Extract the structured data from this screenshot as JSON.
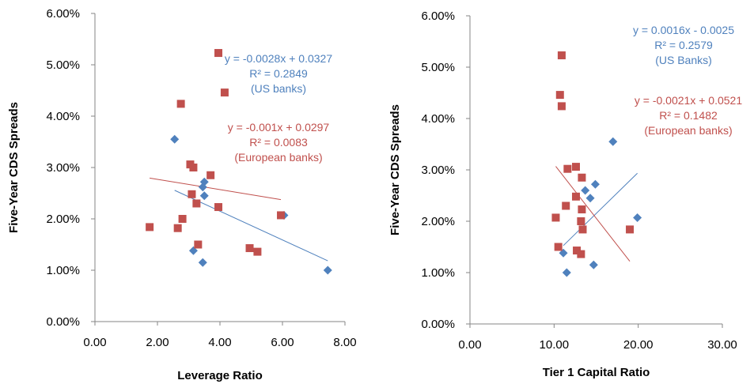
{
  "colors": {
    "us": "#4f81bd",
    "eu": "#c0504d",
    "axis": "#868686"
  },
  "chart_data": [
    {
      "type": "scatter",
      "xlabel": "Leverage Ratio",
      "ylabel": "Five-Year CDS Spreads",
      "xlim": [
        0,
        8
      ],
      "ylim": [
        0,
        0.06
      ],
      "x_ticks": [
        "0.00",
        "2.00",
        "4.00",
        "6.00",
        "8.00"
      ],
      "y_ticks": [
        "0.00%",
        "1.00%",
        "2.00%",
        "3.00%",
        "4.00%",
        "5.00%",
        "6.00%"
      ],
      "series": [
        {
          "key": "us",
          "marker": "diamond",
          "points": [
            [
              2.55,
              0.0355
            ],
            [
              3.5,
              0.0272
            ],
            [
              3.45,
              0.0262
            ],
            [
              3.5,
              0.0245
            ],
            [
              3.15,
              0.0138
            ],
            [
              3.45,
              0.0115
            ],
            [
              6.05,
              0.0207
            ],
            [
              7.45,
              0.01
            ]
          ]
        },
        {
          "key": "eu",
          "marker": "square",
          "points": [
            [
              1.75,
              0.0184
            ],
            [
              2.65,
              0.0182
            ],
            [
              2.8,
              0.02
            ],
            [
              2.75,
              0.0424
            ],
            [
              3.05,
              0.0306
            ],
            [
              3.15,
              0.03
            ],
            [
              3.1,
              0.0248
            ],
            [
              3.25,
              0.023
            ],
            [
              3.3,
              0.015
            ],
            [
              3.7,
              0.0285
            ],
            [
              3.95,
              0.0523
            ],
            [
              3.95,
              0.0223
            ],
            [
              4.15,
              0.0446
            ],
            [
              4.95,
              0.0143
            ],
            [
              5.2,
              0.0136
            ],
            [
              5.95,
              0.0207
            ]
          ]
        }
      ],
      "trendlines": [
        {
          "key": "us",
          "slope": -0.0028,
          "intercept": 0.0327,
          "x_range": [
            2.55,
            7.45
          ]
        },
        {
          "key": "eu",
          "slope": -0.001,
          "intercept": 0.0297,
          "x_range": [
            1.75,
            5.95
          ]
        }
      ],
      "annotations": [
        {
          "key": "us",
          "lines": [
            "y = -0.0028x + 0.0327",
            "R² = 0.2849",
            "(US banks)"
          ]
        },
        {
          "key": "eu",
          "lines": [
            "y = -0.001x + 0.0297",
            "R² = 0.0083",
            "(European banks)"
          ]
        }
      ]
    },
    {
      "type": "scatter",
      "xlabel": "Tier 1 Capital Ratio",
      "ylabel": "Five-Year CDS Spreads",
      "xlim": [
        0,
        30
      ],
      "ylim": [
        0,
        0.06
      ],
      "x_ticks": [
        "0.00",
        "10.00",
        "20.00",
        "30.00"
      ],
      "y_ticks": [
        "0.00%",
        "1.00%",
        "2.00%",
        "3.00%",
        "4.00%",
        "5.00%",
        "6.00%"
      ],
      "series": [
        {
          "key": "us",
          "marker": "diamond",
          "points": [
            [
              17.0,
              0.0355
            ],
            [
              14.9,
              0.0272
            ],
            [
              13.7,
              0.026
            ],
            [
              14.3,
              0.0245
            ],
            [
              19.9,
              0.0207
            ],
            [
              11.1,
              0.0138
            ],
            [
              11.5,
              0.01
            ],
            [
              14.7,
              0.0115
            ]
          ]
        },
        {
          "key": "eu",
          "marker": "square",
          "points": [
            [
              10.9,
              0.0523
            ],
            [
              10.7,
              0.0446
            ],
            [
              10.9,
              0.0424
            ],
            [
              11.6,
              0.0302
            ],
            [
              12.6,
              0.0306
            ],
            [
              13.3,
              0.0285
            ],
            [
              12.6,
              0.0248
            ],
            [
              11.4,
              0.023
            ],
            [
              13.3,
              0.0223
            ],
            [
              13.2,
              0.02
            ],
            [
              10.2,
              0.0207
            ],
            [
              13.4,
              0.0184
            ],
            [
              19.0,
              0.0184
            ],
            [
              10.5,
              0.015
            ],
            [
              12.7,
              0.0143
            ],
            [
              13.2,
              0.0136
            ]
          ]
        }
      ],
      "trendlines": [
        {
          "key": "us",
          "slope": 0.0016,
          "intercept": -0.0025,
          "x_range": [
            11.1,
            19.9
          ]
        },
        {
          "key": "eu",
          "slope": -0.0021,
          "intercept": 0.0521,
          "x_range": [
            10.2,
            19.0
          ]
        }
      ],
      "annotations": [
        {
          "key": "us",
          "lines": [
            "y = 0.0016x - 0.0025",
            "R² = 0.2579",
            "(US Banks)"
          ]
        },
        {
          "key": "eu",
          "lines": [
            "y = -0.0021x + 0.0521",
            "R² = 0.1482",
            "(European banks)"
          ]
        }
      ]
    }
  ]
}
